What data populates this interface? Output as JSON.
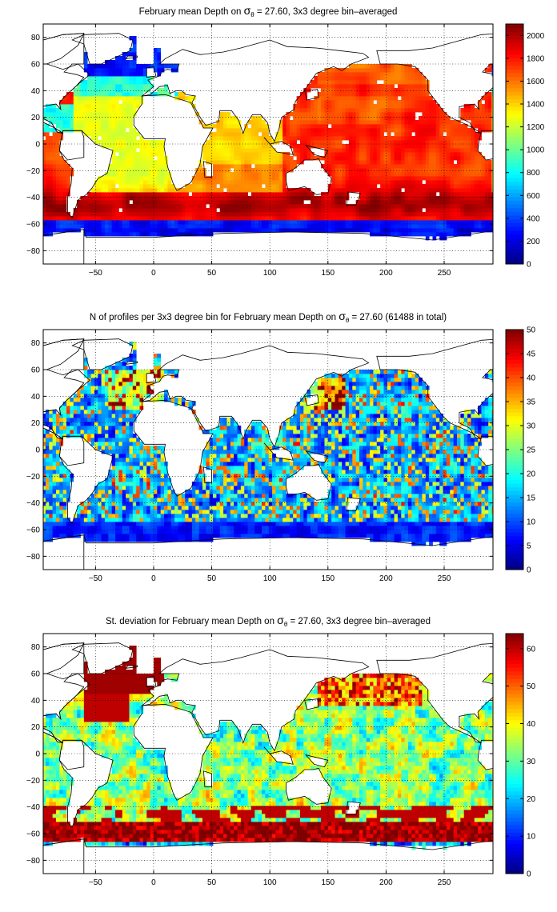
{
  "chart_data": [
    {
      "type": "heatmap",
      "title": "February mean Depth on σθ = 27.60, 3x3 degree bin–averaged",
      "title_parts": {
        "pre": "February mean Depth on ",
        "sigma": "σ",
        "sub": "θ",
        "post": " = 27.60, 3x3 degree bin–averaged"
      },
      "xlabel": "",
      "ylabel": "",
      "xlim": [
        -95,
        292
      ],
      "ylim": [
        -90,
        90
      ],
      "x_ticks": [
        -50,
        0,
        50,
        100,
        150,
        200,
        250
      ],
      "y_ticks": [
        80,
        60,
        40,
        20,
        0,
        -20,
        -40,
        -60,
        -80
      ],
      "colorbar": {
        "min": 0,
        "max": 2100,
        "ticks": [
          2000,
          1800,
          1600,
          1400,
          1200,
          1000,
          800,
          600,
          400,
          200,
          0
        ]
      },
      "field": "depth",
      "grid": true
    },
    {
      "type": "heatmap",
      "title": "N of profiles per 3x3 degree bin for February mean Depth on σθ = 27.60 (61488 in total)",
      "title_parts": {
        "pre": "N of profiles per 3x3 degree bin for February mean Depth on ",
        "sigma": "σ",
        "sub": "θ",
        "post": " = 27.60 (61488 in total)"
      },
      "xlabel": "",
      "ylabel": "",
      "xlim": [
        -95,
        292
      ],
      "ylim": [
        -90,
        90
      ],
      "x_ticks": [
        -50,
        0,
        50,
        100,
        150,
        200,
        250
      ],
      "y_ticks": [
        80,
        60,
        40,
        20,
        0,
        -20,
        -40,
        -60,
        -80
      ],
      "colorbar": {
        "min": 0,
        "max": 50,
        "ticks": [
          50,
          45,
          40,
          35,
          30,
          25,
          20,
          15,
          10,
          5,
          0
        ]
      },
      "field": "count",
      "grid": true
    },
    {
      "type": "heatmap",
      "title": "St. deviation for February mean Depth on σθ = 27.60, 3x3 degree bin–averaged",
      "title_parts": {
        "pre": "St. deviation for February mean Depth on ",
        "sigma": "σ",
        "sub": "θ",
        "post": " = 27.60, 3x3 degree bin–averaged"
      },
      "xlabel": "",
      "ylabel": "",
      "xlim": [
        -95,
        292
      ],
      "ylim": [
        -90,
        90
      ],
      "x_ticks": [
        -50,
        0,
        50,
        100,
        150,
        200,
        250
      ],
      "y_ticks": [
        80,
        60,
        40,
        20,
        0,
        -20,
        -40,
        -60,
        -80
      ],
      "colorbar": {
        "min": 0,
        "max": 64,
        "ticks": [
          60,
          50,
          40,
          30,
          20,
          10,
          0
        ]
      },
      "field": "std",
      "grid": true
    }
  ],
  "colormap": "jet"
}
